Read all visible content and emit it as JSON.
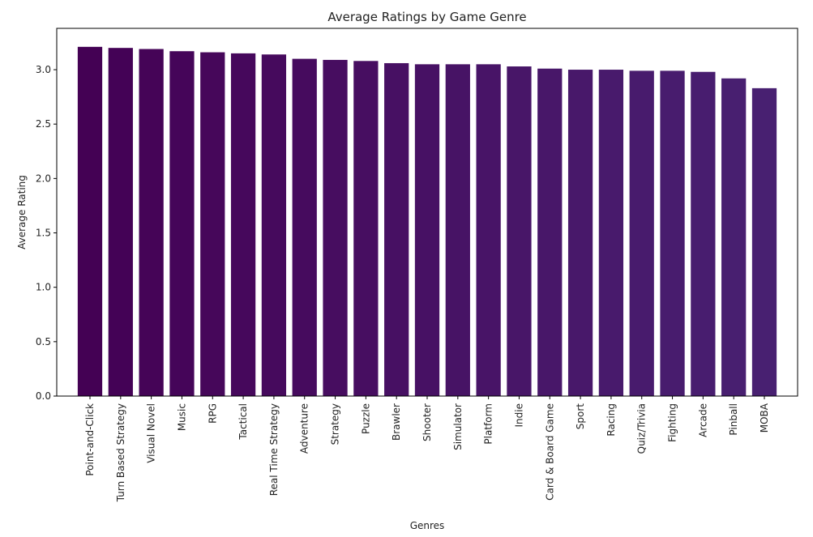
{
  "chart_data": {
    "type": "bar",
    "title": "Average Ratings by Game Genre",
    "xlabel": "Genres",
    "ylabel": "Average Rating",
    "ylim": [
      0,
      3.38
    ],
    "yticks": [
      "0.0",
      "0.5",
      "1.0",
      "1.5",
      "2.0",
      "2.5",
      "3.0"
    ],
    "categories": [
      "Point-and-Click",
      "Turn Based Strategy",
      "Visual Novel",
      "Music",
      "RPG",
      "Tactical",
      "Real Time Strategy",
      "Adventure",
      "Strategy",
      "Puzzle",
      "Brawler",
      "Shooter",
      "Simulator",
      "Platform",
      "Indie",
      "Card & Board Game",
      "Sport",
      "Racing",
      "Quiz/Trivia",
      "Fighting",
      "Arcade",
      "Pinball",
      "MOBA"
    ],
    "values": [
      3.21,
      3.2,
      3.19,
      3.17,
      3.16,
      3.15,
      3.14,
      3.1,
      3.09,
      3.08,
      3.06,
      3.05,
      3.05,
      3.05,
      3.03,
      3.01,
      3.0,
      3.0,
      2.99,
      2.99,
      2.98,
      2.92,
      2.83
    ],
    "colors": [
      "#440154",
      "#440256",
      "#450457",
      "#450559",
      "#46075a",
      "#46085c",
      "#460a5d",
      "#460b5e",
      "#470d60",
      "#470e61",
      "#471063",
      "#471164",
      "#471365",
      "#481467",
      "#481668",
      "#481769",
      "#48186a",
      "#481a6c",
      "#481b6d",
      "#481c6e",
      "#481d6f",
      "#481f70",
      "#482071"
    ],
    "grid": false,
    "legend": "none"
  }
}
